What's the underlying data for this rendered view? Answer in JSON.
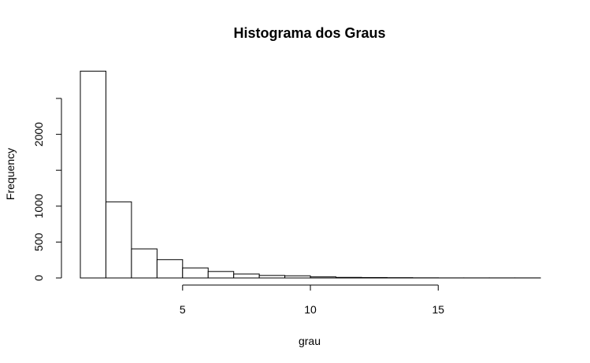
{
  "chart_data": {
    "type": "bar",
    "title": "Histograma dos Graus",
    "xlabel": "grau",
    "ylabel": "Frequency",
    "xlim": [
      1,
      19
    ],
    "ylim": [
      0,
      2900
    ],
    "x_ticks": [
      5,
      10,
      15
    ],
    "y_ticks": [
      0,
      500,
      1000,
      1500,
      2000,
      2500
    ],
    "y_tick_labels": [
      "0",
      "500",
      "1000",
      "",
      "2000",
      ""
    ],
    "grid": false,
    "bins": [
      {
        "x0": 1,
        "x1": 2,
        "count": 2880
      },
      {
        "x0": 2,
        "x1": 3,
        "count": 1060
      },
      {
        "x0": 3,
        "x1": 4,
        "count": 405
      },
      {
        "x0": 4,
        "x1": 5,
        "count": 255
      },
      {
        "x0": 5,
        "x1": 6,
        "count": 140
      },
      {
        "x0": 6,
        "x1": 7,
        "count": 90
      },
      {
        "x0": 7,
        "x1": 8,
        "count": 55
      },
      {
        "x0": 8,
        "x1": 9,
        "count": 35
      },
      {
        "x0": 9,
        "x1": 10,
        "count": 30
      },
      {
        "x0": 10,
        "x1": 11,
        "count": 15
      },
      {
        "x0": 11,
        "x1": 12,
        "count": 8
      },
      {
        "x0": 12,
        "x1": 13,
        "count": 6
      },
      {
        "x0": 13,
        "x1": 14,
        "count": 4
      },
      {
        "x0": 14,
        "x1": 15,
        "count": 2
      },
      {
        "x0": 15,
        "x1": 16,
        "count": 1
      },
      {
        "x0": 16,
        "x1": 17,
        "count": 1
      },
      {
        "x0": 17,
        "x1": 18,
        "count": 1
      },
      {
        "x0": 18,
        "x1": 19,
        "count": 1
      }
    ]
  }
}
